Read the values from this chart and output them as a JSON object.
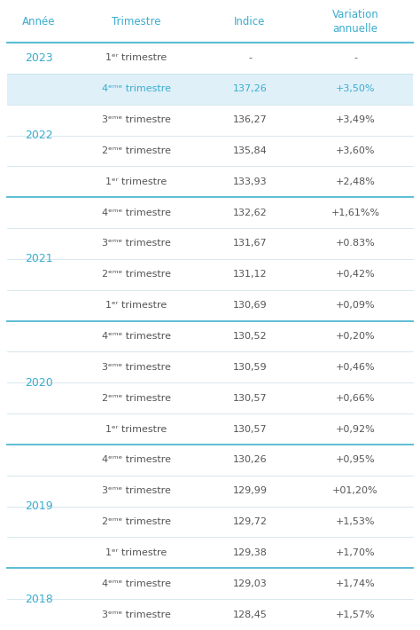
{
  "headers": [
    "Année",
    "Trimestre",
    "Indice",
    "Variation\nannuelle"
  ],
  "rows": [
    {
      "annee": "2023",
      "trimestre": "1ᵉʳ trimestre",
      "indice": "-",
      "variation": "-",
      "highlight": false,
      "year_start": true,
      "year_end": true
    },
    {
      "annee": "2022",
      "trimestre": "4ᵉᵐᵉ trimestre",
      "indice": "137,26",
      "variation": "+3,50%",
      "highlight": true,
      "year_start": true,
      "year_end": false
    },
    {
      "annee": "2022",
      "trimestre": "3ᵉᵐᵉ trimestre",
      "indice": "136,27",
      "variation": "+3,49%",
      "highlight": false,
      "year_start": false,
      "year_end": false
    },
    {
      "annee": "2022",
      "trimestre": "2ᵉᵐᵉ trimestre",
      "indice": "135,84",
      "variation": "+3,60%",
      "highlight": false,
      "year_start": false,
      "year_end": false
    },
    {
      "annee": "2022",
      "trimestre": "1ᵉʳ trimestre",
      "indice": "133,93",
      "variation": "+2,48%",
      "highlight": false,
      "year_start": false,
      "year_end": true
    },
    {
      "annee": "2021",
      "trimestre": "4ᵉᵐᵉ trimestre",
      "indice": "132,62",
      "variation": "+1,61%%",
      "highlight": false,
      "year_start": true,
      "year_end": false
    },
    {
      "annee": "2021",
      "trimestre": "3ᵉᵐᵉ trimestre",
      "indice": "131,67",
      "variation": "+0.83%",
      "highlight": false,
      "year_start": false,
      "year_end": false
    },
    {
      "annee": "2021",
      "trimestre": "2ᵉᵐᵉ trimestre",
      "indice": "131,12",
      "variation": "+0,42%",
      "highlight": false,
      "year_start": false,
      "year_end": false
    },
    {
      "annee": "2021",
      "trimestre": "1ᵉʳ trimestre",
      "indice": "130,69",
      "variation": "+0,09%",
      "highlight": false,
      "year_start": false,
      "year_end": true
    },
    {
      "annee": "2020",
      "trimestre": "4ᵉᵐᵉ trimestre",
      "indice": "130,52",
      "variation": "+0,20%",
      "highlight": false,
      "year_start": true,
      "year_end": false
    },
    {
      "annee": "2020",
      "trimestre": "3ᵉᵐᵉ trimestre",
      "indice": "130,59",
      "variation": "+0,46%",
      "highlight": false,
      "year_start": false,
      "year_end": false
    },
    {
      "annee": "2020",
      "trimestre": "2ᵉᵐᵉ trimestre",
      "indice": "130,57",
      "variation": "+0,66%",
      "highlight": false,
      "year_start": false,
      "year_end": false
    },
    {
      "annee": "2020",
      "trimestre": "1ᵉʳ trimestre",
      "indice": "130,57",
      "variation": "+0,92%",
      "highlight": false,
      "year_start": false,
      "year_end": true
    },
    {
      "annee": "2019",
      "trimestre": "4ᵉᵐᵉ trimestre",
      "indice": "130,26",
      "variation": "+0,95%",
      "highlight": false,
      "year_start": true,
      "year_end": false
    },
    {
      "annee": "2019",
      "trimestre": "3ᵉᵐᵉ trimestre",
      "indice": "129,99",
      "variation": "+01,20%",
      "highlight": false,
      "year_start": false,
      "year_end": false
    },
    {
      "annee": "2019",
      "trimestre": "2ᵉᵐᵉ trimestre",
      "indice": "129,72",
      "variation": "+1,53%",
      "highlight": false,
      "year_start": false,
      "year_end": false
    },
    {
      "annee": "2019",
      "trimestre": "1ᵉʳ trimestre",
      "indice": "129,38",
      "variation": "+1,70%",
      "highlight": false,
      "year_start": false,
      "year_end": true
    },
    {
      "annee": "2018",
      "trimestre": "4ᵉᵐᵉ trimestre",
      "indice": "129,03",
      "variation": "+1,74%",
      "highlight": false,
      "year_start": true,
      "year_end": false
    },
    {
      "annee": "2018",
      "trimestre": "3ᵉᵐᵉ trimestre",
      "indice": "128,45",
      "variation": "+1,57%",
      "highlight": false,
      "year_start": false,
      "year_end": true
    }
  ],
  "header_text_color": "#3aaccf",
  "highlight_bg_color": "#dff0f8",
  "highlight_text_color": "#3aaccf",
  "normal_text_color": "#555555",
  "annee_text_color": "#3aaccf",
  "thin_line_color": "#c8dfe8",
  "thick_line_color": "#5bbdd4",
  "bg_color": "#ffffff",
  "fig_width": 4.74,
  "fig_height": 7.1,
  "dpi": 100
}
